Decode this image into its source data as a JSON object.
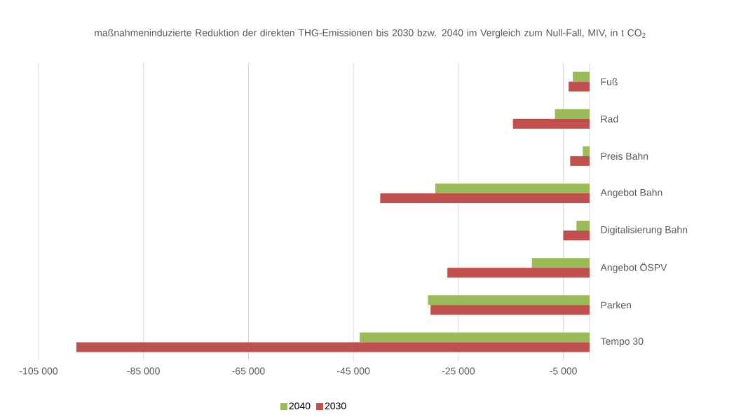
{
  "chart_data": {
    "type": "bar",
    "orientation": "horizontal",
    "title": "maßnahmeninduzierte Reduktion der direkten THG-Emissionen bis 2030 bzw. 2040 im Vergleich zum Null-Fall, MIV, in t CO$_{2}$",
    "categories": [
      "Fuß",
      "Rad",
      "Preis Bahn",
      "Angebot Bahn",
      "Digitalisierung Bahn",
      "Angebot ÖSPV",
      "Parken",
      "Tempo 30"
    ],
    "series": [
      {
        "name": "2040",
        "color": "#9bbb59",
        "values": [
          -3200,
          -6600,
          -1300,
          -29400,
          -2500,
          -11000,
          -30800,
          -43800
        ]
      },
      {
        "name": "2030",
        "color": "#c0504d",
        "values": [
          -4000,
          -14600,
          -3700,
          -39900,
          -5000,
          -27100,
          -30300,
          -97800
        ]
      }
    ],
    "xlim": [
      -105000,
      0
    ],
    "xticks": [
      {
        "value": -105000,
        "label": "-105 000"
      },
      {
        "value": -85000,
        "label": "-85 000"
      },
      {
        "value": -65000,
        "label": "-65 000"
      },
      {
        "value": -45000,
        "label": "-45 000"
      },
      {
        "value": -25000,
        "label": "-25 000"
      },
      {
        "value": -5000,
        "label": "-5 000"
      }
    ],
    "grid": "x",
    "legend": "bottom"
  }
}
